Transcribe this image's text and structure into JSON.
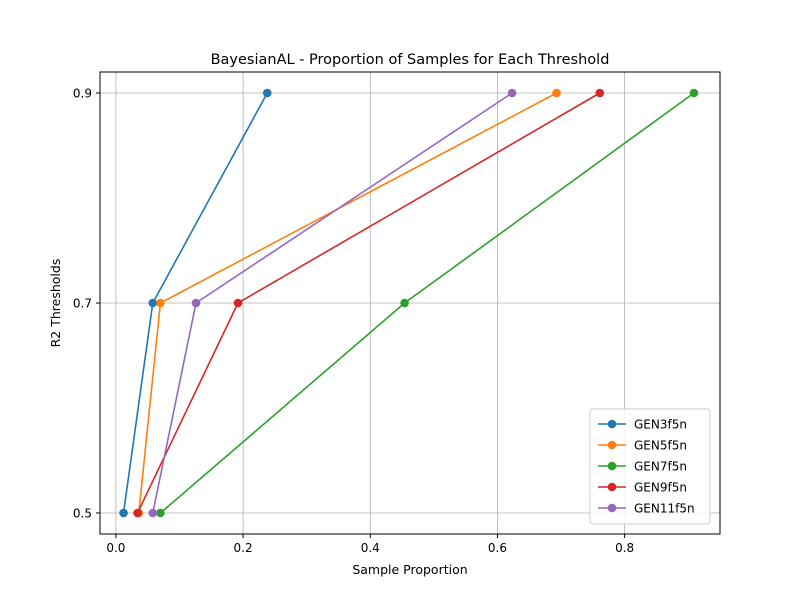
{
  "chart_data": {
    "type": "line",
    "title": "BayesianAL - Proportion of Samples for Each Threshold",
    "xlabel": "Sample Proportion",
    "ylabel": "R2 Thresholds",
    "xlim": [
      -0.025,
      0.95
    ],
    "ylim": [
      0.48,
      0.92
    ],
    "xticks": [
      0.0,
      0.2,
      0.4,
      0.6,
      0.8
    ],
    "xtick_labels": [
      "0.0",
      "0.2",
      "0.4",
      "0.6",
      "0.8"
    ],
    "yticks": [
      0.5,
      0.7,
      0.9
    ],
    "ytick_labels": [
      "0.5",
      "0.7",
      "0.9"
    ],
    "grid": true,
    "legend_position": "lower-right",
    "series": [
      {
        "name": "GEN3f5n",
        "color": "#1f77b4",
        "x": [
          0.012,
          0.058,
          0.238
        ],
        "y": [
          0.5,
          0.7,
          0.9
        ]
      },
      {
        "name": "GEN5f5n",
        "color": "#ff7f0e",
        "x": [
          0.036,
          0.07,
          0.693
        ],
        "y": [
          0.5,
          0.7,
          0.9
        ]
      },
      {
        "name": "GEN7f5n",
        "color": "#2ca02c",
        "x": [
          0.07,
          0.454,
          0.909
        ],
        "y": [
          0.5,
          0.7,
          0.9
        ]
      },
      {
        "name": "GEN9f5n",
        "color": "#d62728",
        "x": [
          0.034,
          0.192,
          0.761
        ],
        "y": [
          0.5,
          0.7,
          0.9
        ]
      },
      {
        "name": "GEN11f5n",
        "color": "#9467bd",
        "x": [
          0.058,
          0.126,
          0.623
        ],
        "y": [
          0.5,
          0.7,
          0.9
        ]
      }
    ]
  }
}
